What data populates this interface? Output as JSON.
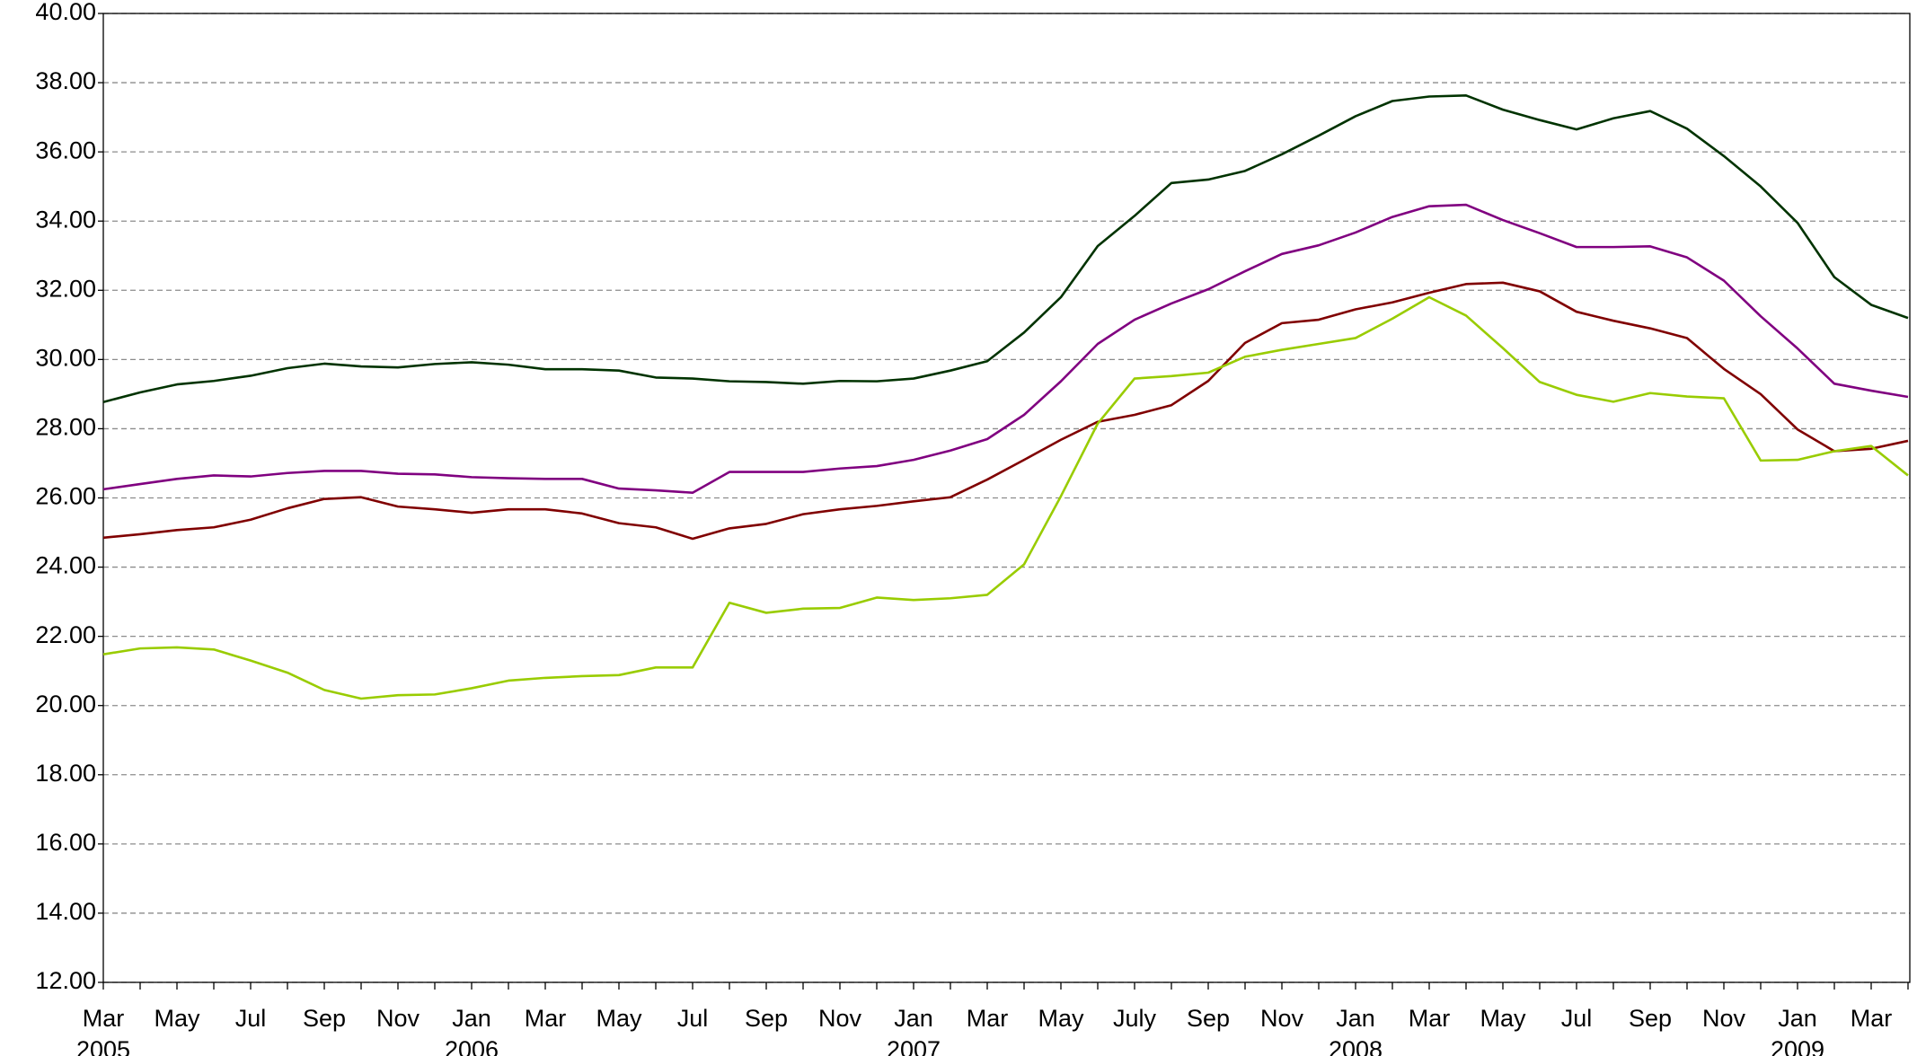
{
  "chart_data": {
    "type": "line",
    "categories": [
      "Mar",
      null,
      "May",
      null,
      "Jul",
      null,
      "Sep",
      null,
      "Nov",
      null,
      "Jan",
      null,
      "Mar",
      null,
      "May",
      null,
      "Jul",
      null,
      "Sep",
      null,
      "Nov",
      null,
      "Jan",
      null,
      "Mar",
      null,
      "May",
      null,
      "July",
      null,
      "Sep",
      null,
      "Nov",
      null,
      "Jan",
      null,
      "Mar",
      null,
      "May",
      null,
      "Jul",
      null,
      "Sep",
      null,
      "Nov",
      null,
      "Jan",
      null,
      "Mar",
      null
    ],
    "category_years": [
      "2005",
      null,
      null,
      null,
      null,
      null,
      null,
      null,
      null,
      null,
      "2006",
      null,
      null,
      null,
      null,
      null,
      null,
      null,
      null,
      null,
      null,
      null,
      "2007",
      null,
      null,
      null,
      null,
      null,
      null,
      null,
      null,
      null,
      null,
      null,
      "2008",
      null,
      null,
      null,
      null,
      null,
      null,
      null,
      null,
      null,
      null,
      null,
      "2009",
      null,
      null,
      null
    ],
    "series": [
      {
        "color": "#003300",
        "values": [
          28.77,
          29.05,
          29.28,
          29.38,
          29.53,
          29.75,
          29.88,
          29.8,
          29.77,
          29.87,
          29.92,
          29.85,
          29.72,
          29.72,
          29.68,
          29.48,
          29.45,
          29.37,
          29.35,
          29.3,
          29.38,
          29.37,
          29.45,
          29.68,
          29.95,
          30.78,
          31.8,
          33.28,
          34.15,
          35.1,
          35.2,
          35.45,
          35.93,
          36.47,
          37.03,
          37.47,
          37.6,
          37.63,
          37.22,
          36.92,
          36.65,
          36.97,
          37.18,
          36.67,
          35.88,
          35.0,
          33.95,
          32.38,
          31.58,
          31.2
        ]
      },
      {
        "color": "#800080",
        "values": [
          26.25,
          26.4,
          26.55,
          26.65,
          26.62,
          26.72,
          26.78,
          26.78,
          26.7,
          26.68,
          26.6,
          26.57,
          26.55,
          26.55,
          26.27,
          26.22,
          26.15,
          26.75,
          26.75,
          26.75,
          26.85,
          26.92,
          27.1,
          27.37,
          27.7,
          28.4,
          29.37,
          30.45,
          31.15,
          31.62,
          32.03,
          32.55,
          33.05,
          33.3,
          33.67,
          34.12,
          34.43,
          34.47,
          34.03,
          33.65,
          33.25,
          33.25,
          33.27,
          32.95,
          32.28,
          31.25,
          30.32,
          29.3,
          29.1,
          28.92
        ]
      },
      {
        "color": "#800000",
        "values": [
          24.85,
          24.95,
          25.07,
          25.15,
          25.37,
          25.7,
          25.97,
          26.02,
          25.75,
          25.67,
          25.57,
          25.67,
          25.67,
          25.55,
          25.27,
          25.15,
          24.82,
          25.12,
          25.25,
          25.53,
          25.67,
          25.77,
          25.9,
          26.02,
          26.53,
          27.1,
          27.68,
          28.2,
          28.4,
          28.68,
          29.38,
          30.48,
          31.05,
          31.15,
          31.45,
          31.65,
          31.93,
          32.18,
          32.22,
          31.97,
          31.38,
          31.12,
          30.9,
          30.62,
          29.73,
          29.0,
          27.98,
          27.35,
          27.42,
          27.65
        ]
      },
      {
        "color": "#99cc00",
        "values": [
          21.48,
          21.65,
          21.68,
          21.62,
          21.3,
          20.95,
          20.45,
          20.2,
          20.3,
          20.32,
          20.5,
          20.72,
          20.8,
          20.85,
          20.88,
          21.1,
          21.1,
          22.97,
          22.68,
          22.8,
          22.82,
          23.12,
          23.05,
          23.1,
          23.2,
          24.08,
          26.05,
          28.15,
          29.45,
          29.52,
          29.62,
          30.08,
          30.28,
          30.45,
          30.62,
          31.18,
          31.8,
          31.27,
          30.33,
          29.35,
          28.98,
          28.78,
          29.03,
          28.93,
          28.88,
          27.08,
          27.1,
          27.35,
          27.5,
          26.65
        ]
      }
    ],
    "ylim": [
      12,
      40
    ],
    "yticks": [
      {
        "value": 12,
        "label": "12.00"
      },
      {
        "value": 14,
        "label": "14.00"
      },
      {
        "value": 16,
        "label": "16.00"
      },
      {
        "value": 18,
        "label": "18.00"
      },
      {
        "value": 20,
        "label": "20.00"
      },
      {
        "value": 22,
        "label": "22.00"
      },
      {
        "value": 24,
        "label": "24.00"
      },
      {
        "value": 26,
        "label": "26.00"
      },
      {
        "value": 28,
        "label": "28.00"
      },
      {
        "value": 30,
        "label": "30.00"
      },
      {
        "value": 32,
        "label": "32.00"
      },
      {
        "value": 34,
        "label": "34.00"
      },
      {
        "value": 36,
        "label": "36.00"
      },
      {
        "value": 38,
        "label": "38.00"
      },
      {
        "value": 40,
        "label": "40.00"
      }
    ],
    "grid": true
  }
}
